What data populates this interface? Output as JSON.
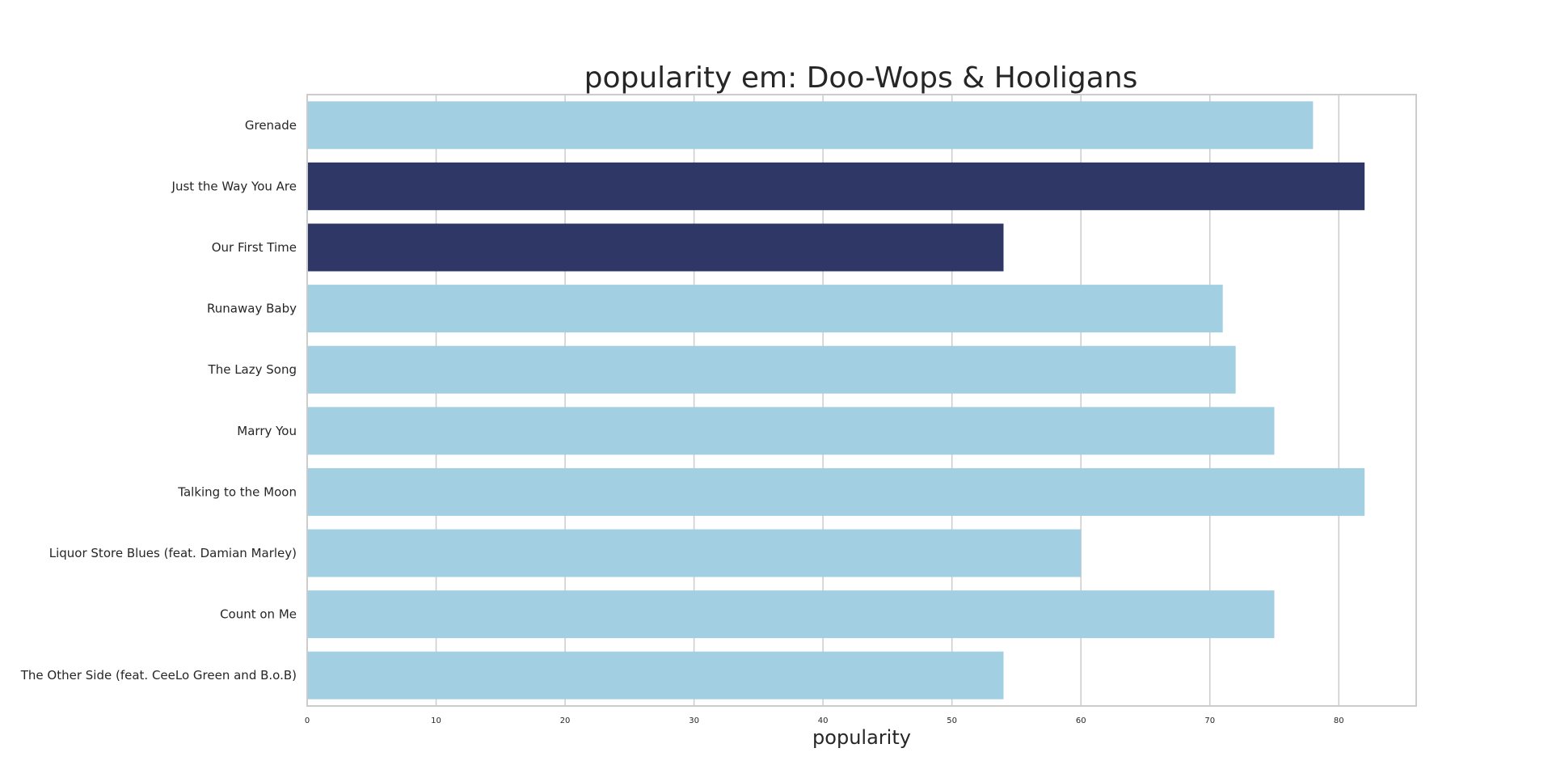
{
  "chart_data": {
    "type": "bar",
    "orientation": "horizontal",
    "title": "popularity em: Doo-Wops & Hooligans",
    "xlabel": "popularity",
    "ylabel": "",
    "xlim": [
      0,
      86
    ],
    "xticks": [
      "0",
      "10",
      "20",
      "30",
      "40",
      "50",
      "60",
      "70",
      "80"
    ],
    "grid": true,
    "categories": [
      "Grenade",
      "Just the Way You Are",
      "Our First Time",
      "Runaway Baby",
      "The Lazy Song",
      "Marry You",
      "Talking to the Moon",
      "Liquor Store Blues (feat. Damian Marley)",
      "Count on Me",
      "The Other Side (feat. CeeLo Green and B.o.B)"
    ],
    "values": [
      78,
      82,
      54,
      71,
      72,
      75,
      82,
      60,
      75,
      54
    ],
    "highlighted": [
      false,
      true,
      true,
      false,
      false,
      false,
      false,
      false,
      false,
      false
    ],
    "colors": {
      "default": "#a3cfe3",
      "highlight": "#2e3766"
    }
  }
}
